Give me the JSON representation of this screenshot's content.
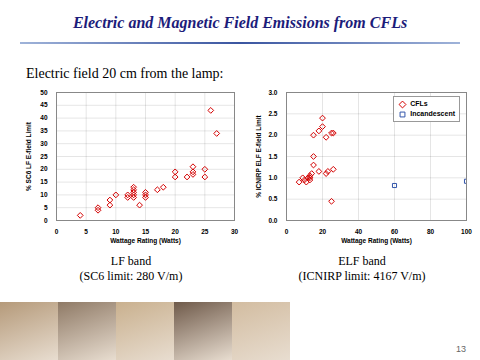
{
  "title": "Electric and Magnetic Field Emissions from CFLs",
  "subtitle": "Electric field 20 cm from the lamp:",
  "page_number": 13,
  "chart_data": [
    {
      "type": "scatter",
      "caption": [
        "LF band",
        "(SC6 limit: 280 V/m)"
      ],
      "x_label": "Wattage Rating (Watts)",
      "y_label": "% SC6 LF E-field Limit",
      "xlim": [
        0,
        30
      ],
      "xticks": [
        0,
        5,
        10,
        15,
        20,
        25,
        30
      ],
      "ylim": [
        0,
        50
      ],
      "yticks": [
        0,
        5,
        10,
        15,
        20,
        25,
        30,
        35,
        40,
        45,
        50
      ],
      "grid": true,
      "series": [
        {
          "color": "#d40000",
          "marker": "diamond",
          "x": [
            4,
            7,
            7,
            9,
            9,
            10,
            12,
            12,
            13,
            13,
            13,
            13,
            13,
            14,
            15,
            15,
            15,
            17,
            18,
            20,
            20,
            22,
            23,
            23,
            23,
            25,
            25,
            26,
            27
          ],
          "values": [
            2,
            4,
            5,
            6,
            8,
            10,
            9,
            10,
            11,
            12,
            13,
            9,
            10,
            6,
            9,
            10,
            11,
            12,
            13,
            17,
            19,
            17,
            18,
            19,
            21,
            20,
            17,
            43,
            34
          ]
        }
      ]
    },
    {
      "type": "scatter",
      "caption": [
        "ELF band",
        "(ICNIRP limit: 4167 V/m)"
      ],
      "x_label": "Wattage Rating (Watts)",
      "y_label": "% ICNIRP ELF E-field Limit",
      "xlim": [
        0,
        100
      ],
      "xticks": [
        0,
        20,
        40,
        60,
        80,
        100
      ],
      "ylim": [
        0,
        3
      ],
      "yticks": [
        {
          "value": 0,
          "label": "0.0"
        },
        {
          "value": 0.5,
          "label": "0.5"
        },
        {
          "value": 1,
          "label": "1.0"
        },
        {
          "value": 1.5,
          "label": "1.5"
        },
        {
          "value": 2,
          "label": "2.0"
        },
        {
          "value": 2.5,
          "label": "2.5"
        },
        {
          "value": 3,
          "label": "3.0"
        }
      ],
      "grid": true,
      "legend": "top-right",
      "series": [
        {
          "name": "CFLs",
          "color": "#d40000",
          "marker": "diamond",
          "x": [
            7,
            9,
            10,
            11,
            12,
            13,
            13,
            13,
            14,
            15,
            15,
            15,
            18,
            18,
            20,
            20,
            22,
            22,
            23,
            25,
            26,
            25,
            26
          ],
          "values": [
            0.9,
            1.0,
            0.95,
            0.9,
            1.0,
            1.0,
            1.05,
            0.95,
            1.1,
            1.5,
            1.3,
            2.0,
            1.15,
            2.1,
            2.4,
            2.2,
            1.95,
            1.1,
            1.15,
            2.05,
            2.05,
            0.45,
            1.2
          ]
        },
        {
          "name": "Incandescent",
          "color": "#3355aa",
          "marker": "square",
          "x": [
            60,
            100
          ],
          "values": [
            0.82,
            0.92
          ]
        }
      ]
    }
  ]
}
